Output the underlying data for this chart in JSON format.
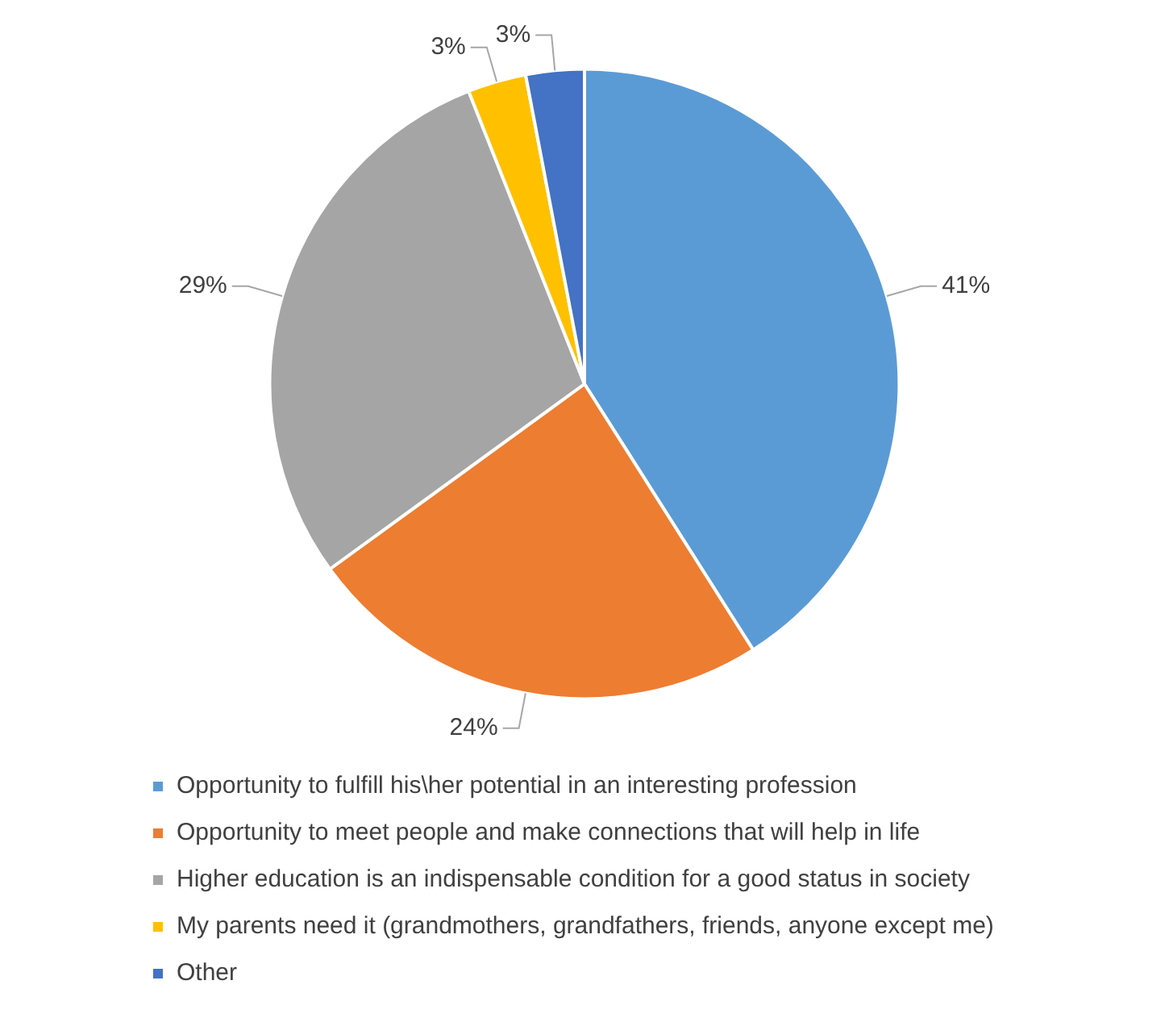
{
  "chart_data": {
    "type": "pie",
    "categories": [
      "Opportunity to fulfill his\\her potential in an interesting profession",
      "Opportunity to meet people and make connections that will help in life",
      "Higher education is an indispensable condition for a good status in society",
      "My parents need it (grandmothers, grandfathers, friends, anyone except me)",
      "Other"
    ],
    "values": [
      41,
      24,
      29,
      3,
      3
    ],
    "colors": [
      "#5b9bd5",
      "#ed7d31",
      "#a5a5a5",
      "#ffc000",
      "#4472c4"
    ],
    "value_labels": [
      "41%",
      "24%",
      "29%",
      "3%",
      "3%"
    ],
    "legend": "bottom"
  }
}
